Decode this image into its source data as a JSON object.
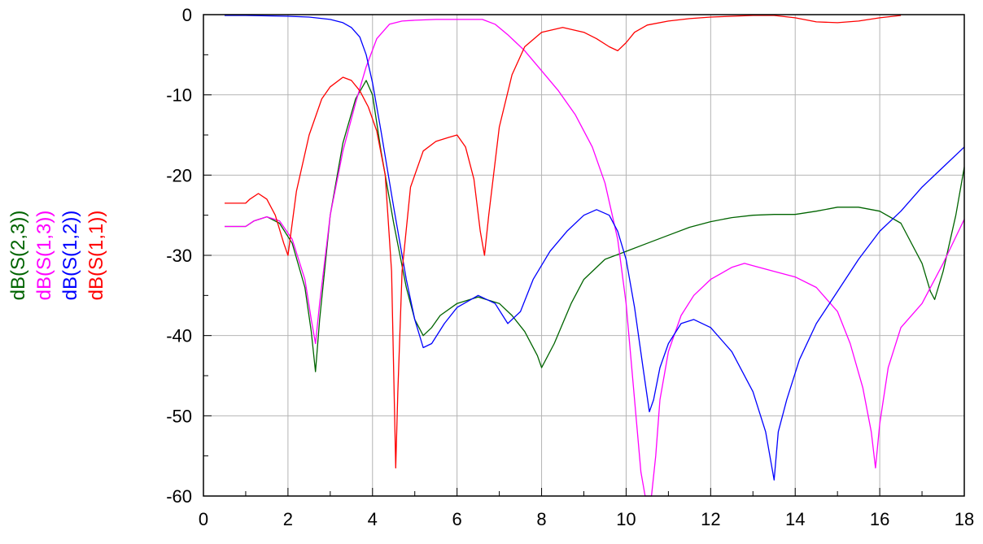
{
  "chart_data": {
    "type": "line",
    "xlim": [
      0,
      18
    ],
    "ylim": [
      -60,
      0
    ],
    "x_ticks": [
      0,
      2,
      4,
      6,
      8,
      10,
      12,
      14,
      16,
      18
    ],
    "y_ticks": [
      0,
      -10,
      -20,
      -30,
      -40,
      -50,
      -60
    ],
    "x_tick_labels": [
      "0",
      "2",
      "4",
      "6",
      "8",
      "10",
      "12",
      "14",
      "16",
      "18"
    ],
    "y_tick_labels": [
      "0",
      "-10",
      "-20",
      "-30",
      "-40",
      "-50",
      "-60"
    ],
    "grid": true,
    "legend_position": "left, vertical",
    "series": [
      {
        "name": "dB(S(2,3))",
        "color": "#006400",
        "x": [
          0.5,
          1.0,
          1.2,
          1.5,
          1.8,
          2.1,
          2.4,
          2.55,
          2.65,
          2.75,
          3.0,
          3.3,
          3.6,
          3.85,
          4.0,
          4.2,
          4.5,
          4.8,
          5.0,
          5.2,
          5.4,
          5.6,
          6.0,
          6.5,
          7.0,
          7.3,
          7.6,
          7.9,
          8.0,
          8.3,
          8.7,
          9.0,
          9.5,
          10.0,
          10.5,
          11.0,
          11.5,
          12.0,
          12.5,
          13.0,
          13.5,
          14.0,
          14.5,
          15.0,
          15.5,
          16.0,
          16.5,
          17.0,
          17.2,
          17.3,
          17.5,
          17.8,
          18.0
        ],
        "y": [
          -26.4,
          -26.4,
          -25.7,
          -25.2,
          -26.0,
          -28.5,
          -34.0,
          -39.5,
          -44.5,
          -38.0,
          -25.0,
          -16.0,
          -10.5,
          -8.2,
          -10.0,
          -17.0,
          -26.0,
          -34.0,
          -38.0,
          -40.0,
          -39.0,
          -37.5,
          -36.0,
          -35.2,
          -36.0,
          -37.5,
          -39.5,
          -42.5,
          -44.0,
          -41.0,
          -36.0,
          -33.0,
          -30.5,
          -29.5,
          -28.5,
          -27.5,
          -26.5,
          -25.8,
          -25.3,
          -25.0,
          -24.9,
          -24.9,
          -24.5,
          -24.0,
          -24.0,
          -24.5,
          -26.0,
          -31.0,
          -34.5,
          -35.5,
          -32.0,
          -25.0,
          -19.0
        ]
      },
      {
        "name": "dB(S(1,3))",
        "color": "#ff00ff",
        "x": [
          0.5,
          1.0,
          1.2,
          1.5,
          1.8,
          2.1,
          2.4,
          2.55,
          2.65,
          2.75,
          3.0,
          3.3,
          3.6,
          3.85,
          4.1,
          4.4,
          4.7,
          5.0,
          5.5,
          6.0,
          6.6,
          6.9,
          7.2,
          7.6,
          8.0,
          8.4,
          8.8,
          9.2,
          9.5,
          9.8,
          10.0,
          10.2,
          10.35,
          10.45,
          10.6,
          10.7,
          10.8,
          11.0,
          11.3,
          11.6,
          12.0,
          12.5,
          12.8,
          13.0,
          13.5,
          14.0,
          14.5,
          15.0,
          15.3,
          15.6,
          15.8,
          15.9,
          16.0,
          16.2,
          16.5,
          17.0,
          17.5,
          18.0
        ],
        "y": [
          -26.4,
          -26.4,
          -25.7,
          -25.2,
          -25.7,
          -28.0,
          -33.0,
          -38.0,
          -41.0,
          -36.0,
          -25.0,
          -17.0,
          -11.0,
          -6.5,
          -3.0,
          -1.2,
          -0.8,
          -0.7,
          -0.6,
          -0.6,
          -0.6,
          -1.2,
          -2.5,
          -4.5,
          -7.0,
          -9.5,
          -12.5,
          -16.5,
          -21.0,
          -28.0,
          -36.0,
          -48.0,
          -57.0,
          -60.0,
          -60.0,
          -55.0,
          -48.0,
          -42.0,
          -37.5,
          -35.0,
          -33.0,
          -31.5,
          -31.0,
          -31.3,
          -32.0,
          -32.7,
          -34.0,
          -37.0,
          -41.0,
          -46.5,
          -52.0,
          -56.5,
          -51.0,
          -44.0,
          -39.0,
          -36.0,
          -31.0,
          -25.5
        ]
      },
      {
        "name": "dB(S(1,2))",
        "color": "#0000ff",
        "x": [
          0.5,
          1.0,
          2.0,
          2.5,
          3.0,
          3.3,
          3.5,
          3.7,
          3.85,
          4.0,
          4.2,
          4.5,
          4.8,
          5.0,
          5.2,
          5.4,
          5.7,
          6.0,
          6.5,
          6.9,
          7.2,
          7.5,
          7.8,
          8.2,
          8.6,
          9.0,
          9.3,
          9.6,
          9.8,
          10.0,
          10.2,
          10.4,
          10.55,
          10.65,
          10.8,
          11.0,
          11.3,
          11.6,
          12.0,
          12.5,
          13.0,
          13.3,
          13.5,
          13.6,
          13.8,
          14.1,
          14.5,
          15.0,
          15.5,
          16.0,
          16.5,
          17.0,
          17.5,
          18.0
        ],
        "y": [
          -0.1,
          -0.1,
          -0.2,
          -0.3,
          -0.6,
          -1.0,
          -1.6,
          -2.8,
          -5.0,
          -8.5,
          -14.5,
          -24.0,
          -33.0,
          -38.0,
          -41.5,
          -41.0,
          -38.5,
          -36.5,
          -35.0,
          -36.0,
          -38.5,
          -37.0,
          -33.0,
          -29.5,
          -27.0,
          -25.0,
          -24.3,
          -25.0,
          -27.0,
          -30.5,
          -36.5,
          -44.0,
          -49.5,
          -48.0,
          -44.0,
          -41.0,
          -38.5,
          -38.0,
          -39.0,
          -42.0,
          -47.0,
          -52.0,
          -58.0,
          -52.0,
          -48.0,
          -43.0,
          -38.5,
          -34.5,
          -30.5,
          -27.0,
          -24.5,
          -21.5,
          -19.0,
          -16.5
        ]
      },
      {
        "name": "dB(S(1,1))",
        "color": "#ff0000",
        "x": [
          0.5,
          1.0,
          1.1,
          1.3,
          1.5,
          1.7,
          1.9,
          2.0,
          2.2,
          2.5,
          2.8,
          3.0,
          3.3,
          3.5,
          3.7,
          3.9,
          4.1,
          4.3,
          4.45,
          4.55,
          4.6,
          4.7,
          4.9,
          5.2,
          5.5,
          5.8,
          6.0,
          6.2,
          6.4,
          6.55,
          6.65,
          6.75,
          7.0,
          7.3,
          7.6,
          8.0,
          8.5,
          9.0,
          9.3,
          9.6,
          9.8,
          10.0,
          10.2,
          10.5,
          11.0,
          11.5,
          12.0,
          12.5,
          13.0,
          13.5,
          14.0,
          14.5,
          15.0,
          15.5,
          16.0,
          16.5
        ],
        "y": [
          -23.5,
          -23.5,
          -23.0,
          -22.3,
          -23.0,
          -25.0,
          -28.5,
          -30.0,
          -22.0,
          -15.0,
          -10.5,
          -9.0,
          -7.8,
          -8.2,
          -9.5,
          -11.5,
          -14.5,
          -20.0,
          -32.0,
          -56.5,
          -47.0,
          -32.0,
          -21.5,
          -17.0,
          -15.8,
          -15.3,
          -15.0,
          -16.5,
          -20.5,
          -27.0,
          -30.0,
          -25.0,
          -14.0,
          -7.5,
          -4.0,
          -2.2,
          -1.6,
          -2.2,
          -3.0,
          -4.0,
          -4.5,
          -3.5,
          -2.2,
          -1.3,
          -0.8,
          -0.5,
          -0.3,
          -0.2,
          -0.1,
          -0.1,
          -0.4,
          -0.9,
          -1.0,
          -0.8,
          -0.4,
          -0.1
        ]
      }
    ]
  }
}
